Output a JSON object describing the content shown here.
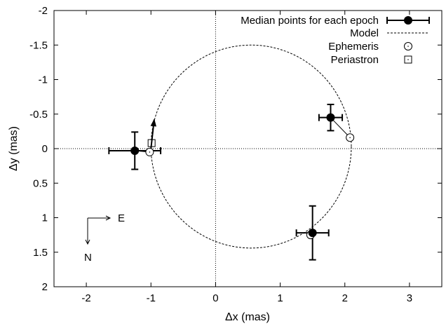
{
  "chart_data": {
    "type": "scatter",
    "xlabel": "Δx (mas)",
    "ylabel": "Δy (mas)",
    "xlim": [
      -2.5,
      3.5
    ],
    "ylim": [
      2,
      -2
    ],
    "y_axis_inverted": true,
    "x_ticks": [
      -2,
      -1,
      0,
      1,
      2,
      3
    ],
    "y_ticks": [
      -2,
      -1.5,
      -1,
      -0.5,
      0,
      0.5,
      1,
      1.5,
      2
    ],
    "x_tick_labels": [
      "-2",
      "-1",
      "0",
      "1",
      "2",
      "3"
    ],
    "y_tick_labels": [
      "-2",
      "-1.5",
      "-1",
      "-0.5",
      "0",
      "0.5",
      "1",
      "1.5",
      "2"
    ],
    "zero_lines": true,
    "grid": false,
    "legend_placement": "top-right",
    "legend": [
      {
        "label": "Median points for each epoch",
        "style": "filled-circle-errorbar"
      },
      {
        "label": "Model",
        "style": "dashed-line"
      },
      {
        "label": "Ephemeris",
        "style": "dotted-circle"
      },
      {
        "label": "Periastron",
        "style": "dotted-square"
      }
    ],
    "median_points": [
      {
        "x": -1.25,
        "y": 0.03,
        "xerr": 0.4,
        "yerr": 0.27
      },
      {
        "x": 1.78,
        "y": -0.45,
        "xerr": 0.18,
        "yerr": 0.19
      },
      {
        "x": 1.5,
        "y": 1.22,
        "xerr": 0.25,
        "yerr": 0.39
      }
    ],
    "ephemeris_points": [
      {
        "x": -1.02,
        "y": 0.05
      },
      {
        "x": 2.08,
        "y": -0.16
      },
      {
        "x": 1.47,
        "y": 1.25
      }
    ],
    "periastron": {
      "x": -0.99,
      "y": -0.08
    },
    "model_orbit": {
      "center_x": 0.55,
      "center_y": -0.03,
      "semi_axis_x": 1.55,
      "semi_axis_y": 1.47,
      "style": "dashed"
    },
    "motion_arrow": {
      "from_x": -1.0,
      "from_y": 0.0,
      "to_x": -0.95,
      "to_y": -0.42
    },
    "compass": {
      "east_label": "E",
      "north_label": "N"
    }
  }
}
